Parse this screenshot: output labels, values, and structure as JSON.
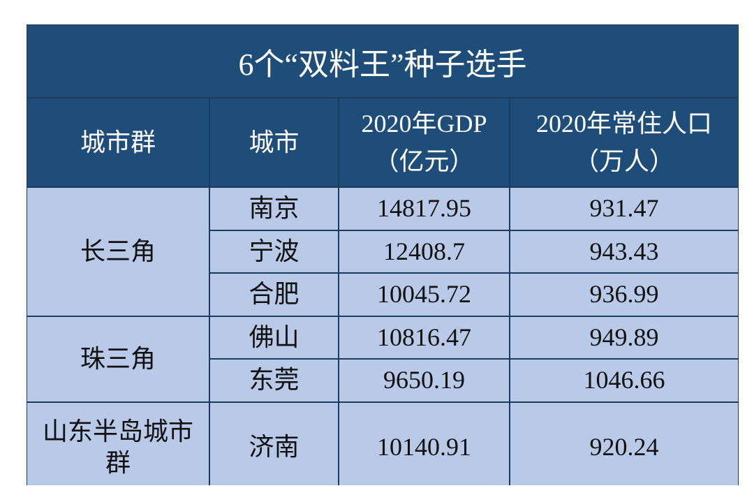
{
  "header": {
    "title": "6个“双料王”种子选手"
  },
  "table": {
    "columns": [
      [
        "城市群"
      ],
      [
        "城市"
      ],
      [
        "2020年GDP",
        "（亿元）"
      ],
      [
        "2020年常住人口",
        "（万人）"
      ]
    ],
    "groups": [
      {
        "name": "长三角",
        "rows": [
          [
            "南京",
            "14817.95",
            "931.47"
          ],
          [
            "宁波",
            "12408.7",
            "943.43"
          ],
          [
            "合肥",
            "10045.72",
            "936.99"
          ]
        ]
      },
      {
        "name": "珠三角",
        "rows": [
          [
            "佛山",
            "10816.47",
            "949.89"
          ],
          [
            "东莞",
            "9650.19",
            "1046.66"
          ]
        ]
      },
      {
        "name": "山东半岛城市群",
        "rows": [
          [
            "济南",
            "10140.91",
            "920.24"
          ]
        ]
      }
    ]
  }
}
